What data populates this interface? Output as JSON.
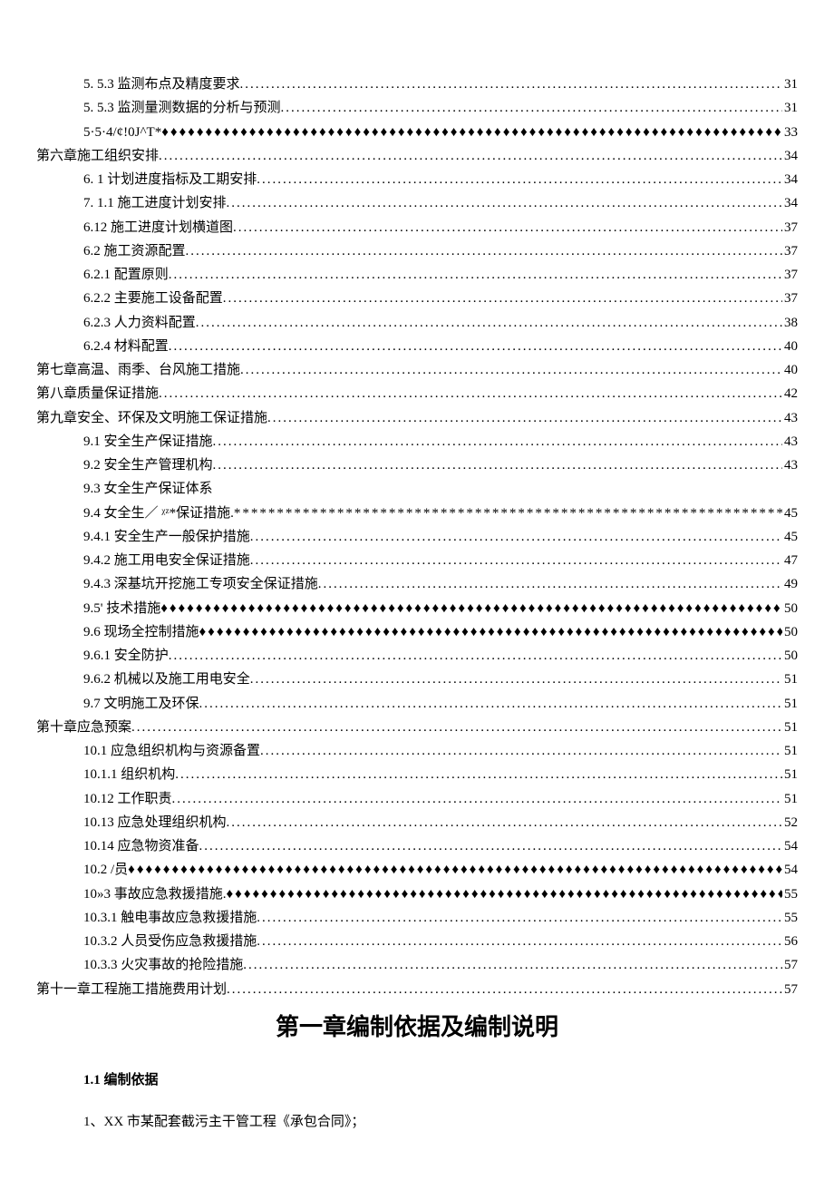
{
  "toc": [
    {
      "level": 1,
      "label": "5.  5.3 监测布点及精度要求 ",
      "leader": "dot",
      "page": "31"
    },
    {
      "level": 1,
      "label": "5.  5.3 监测量测数据的分析与预测 ",
      "leader": "dot",
      "page": "31"
    },
    {
      "level": 1,
      "label": "5·5·4/¢!0J^T*",
      "leader": "diamond",
      "page": "33"
    },
    {
      "level": 0,
      "label": "第六章施工组织安排",
      "leader": "dot",
      "page": "34"
    },
    {
      "level": 1,
      "label": "6.  1 计划进度指标及工期安排 ",
      "leader": "dot",
      "page": "34"
    },
    {
      "level": 1,
      "label": "7.  1.1 施工进度计划安排 ",
      "leader": "dot",
      "page": "34"
    },
    {
      "level": 1,
      "label": "6.12 施工进度计划横道图",
      "leader": "dot",
      "page": "37"
    },
    {
      "level": 1,
      "label": "6.2 施工资源配置",
      "leader": "dot",
      "page": "37"
    },
    {
      "level": 1,
      "label": "6.2.1 配置原则",
      "leader": "dot",
      "page": "37"
    },
    {
      "level": 1,
      "label": "6.2.2 主要施工设备配置",
      "leader": "dot",
      "page": "37"
    },
    {
      "level": 1,
      "label": "6.2.3 人力资料配置",
      "leader": "dot",
      "page": "38"
    },
    {
      "level": 1,
      "label": "6.2.4 材料配置",
      "leader": "dot",
      "page": "40"
    },
    {
      "level": 0,
      "label": "第七章高温、雨季、台风施工措施",
      "leader": "dot",
      "page": "40"
    },
    {
      "level": 0,
      "label": "第八章质量保证措施",
      "leader": "dot",
      "page": "42"
    },
    {
      "level": 0,
      "label": "第九章安全、环保及文明施工保证措施",
      "leader": "dot",
      "page": "43"
    },
    {
      "level": 1,
      "label": "9.1 安全生产保证措施",
      "leader": "dot",
      "page": "43"
    },
    {
      "level": 1,
      "label": "9.2 安全生产管理机构",
      "leader": "dot",
      "page": "43"
    },
    {
      "level": 1,
      "label": "9.3 女全生产保证体系",
      "leader": "none",
      "page": ""
    },
    {
      "level": 1,
      "label": "9.4 女全生／ ᵡᶻ*保证措施. ",
      "leader": "star",
      "page": "45"
    },
    {
      "level": 1,
      "label": "9.4.1 安全生产一般保护措施",
      "leader": "dot",
      "page": "45"
    },
    {
      "level": 1,
      "label": "9.4.2 施工用电安全保证措施",
      "leader": "dot",
      "page": "47"
    },
    {
      "level": 1,
      "label": "9.4.3 深基坑开挖施工专项安全保证措施",
      "leader": "dot",
      "page": "49"
    },
    {
      "level": 1,
      "label": "9.5' 技术措施",
      "leader": "diamond",
      "page": "50"
    },
    {
      "level": 1,
      "label": "9.6 现场全控制措施",
      "leader": "diamond",
      "page": "50"
    },
    {
      "level": 1,
      "label": "9.6.1 安全防护",
      "leader": "dot",
      "page": "50"
    },
    {
      "level": 1,
      "label": "9.6.2 机械以及施工用电安全",
      "leader": "dot",
      "page": "51"
    },
    {
      "level": 1,
      "label": "9.7 文明施工及环保",
      "leader": "dot",
      "page": "51"
    },
    {
      "level": 0,
      "label": "第十章应急预案",
      "leader": "dot",
      "page": "51"
    },
    {
      "level": 1,
      "label": "10.1 应急组织机构与资源备置",
      "leader": "dot",
      "page": "51"
    },
    {
      "level": 1,
      "label": "10.1.1 组织机构",
      "leader": "dot",
      "page": "51"
    },
    {
      "level": 1,
      "label": "10.12 工作职责",
      "leader": "dot",
      "page": "51"
    },
    {
      "level": 1,
      "label": "10.13 应急处理组织机构",
      "leader": "dot",
      "page": "52"
    },
    {
      "level": 1,
      "label": "10.14 应急物资准备",
      "leader": "dot",
      "page": "54"
    },
    {
      "level": 1,
      "label": "10.2           /员 ",
      "leader": "diamond",
      "page": "54"
    },
    {
      "level": 1,
      "label": "10»3 事故应急救援措施. ",
      "leader": "diamond",
      "page": "55"
    },
    {
      "level": 1,
      "label": "10.3.1 触电事故应急救援措施",
      "leader": "dot",
      "page": "55"
    },
    {
      "level": 1,
      "label": "10.3.2 人员受伤应急救援措施",
      "leader": "dot",
      "page": "56"
    },
    {
      "level": 1,
      "label": "10.3.3 火灾事故的抢险措施",
      "leader": "dot",
      "page": "57"
    },
    {
      "level": 0,
      "label": "第十一章工程施工措施费用计划",
      "leader": "dot",
      "page": "57"
    }
  ],
  "chapter_heading": "第一章编制依据及编制说明",
  "section_heading_num": "1.1",
  "section_heading_text": " 编制依据",
  "body_para_1": "1、XX 市某配套截污主干管工程《承包合同》；"
}
